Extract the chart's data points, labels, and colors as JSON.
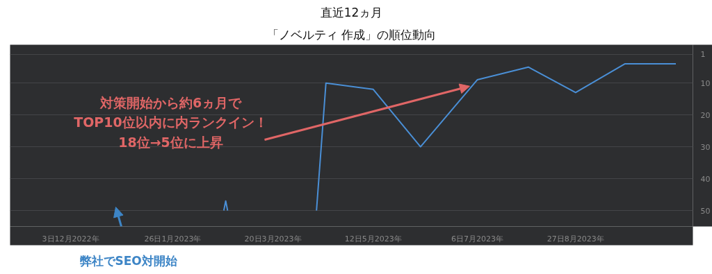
{
  "chart_data": {
    "type": "line",
    "title": "直近12ヵ月",
    "subtitle": "「ノベルティ 作成」の順位動向",
    "x": [
      "2023-02-22",
      "2023-02-23",
      "2023-02-24",
      "2023-03-20",
      "2023-04-12",
      "2023-04-17",
      "2023-05-12",
      "2023-06-06",
      "2023-07-06",
      "2023-08-02",
      "2023-08-27",
      "2023-09-22",
      "2023-10-19"
    ],
    "series": [
      {
        "color": "#4a8fd6",
        "values": [
          50,
          47,
          50,
          null,
          50,
          10,
          12,
          30,
          9,
          5,
          13,
          4,
          4
        ]
      }
    ],
    "xlim": [
      "2022-11-01",
      "2023-10-28"
    ],
    "xticks": [
      {
        "value": "2022-12-03",
        "label": "3日12月2022年"
      },
      {
        "value": "2023-01-26",
        "label": "26日1月2023年"
      },
      {
        "value": "2023-03-20",
        "label": "20日3月2023年"
      },
      {
        "value": "2023-05-12",
        "label": "12日5月2023年"
      },
      {
        "value": "2023-07-06",
        "label": "6日7月2023年"
      },
      {
        "value": "2023-08-27",
        "label": "27日8月2023年"
      }
    ],
    "ylim": [
      55,
      -2
    ],
    "yticks": [
      1,
      10,
      20,
      30,
      40,
      50
    ],
    "annotations": [
      {
        "text": "対策開始から約6ヵ月で\nTOP10位以内に内ランクイン！\n18位→5位に上昇",
        "x": "2023-07-02",
        "y": 11
      },
      "弊社でSEO対開始"
    ],
    "grid": "y",
    "marker": "none",
    "line_style": "solid"
  }
}
